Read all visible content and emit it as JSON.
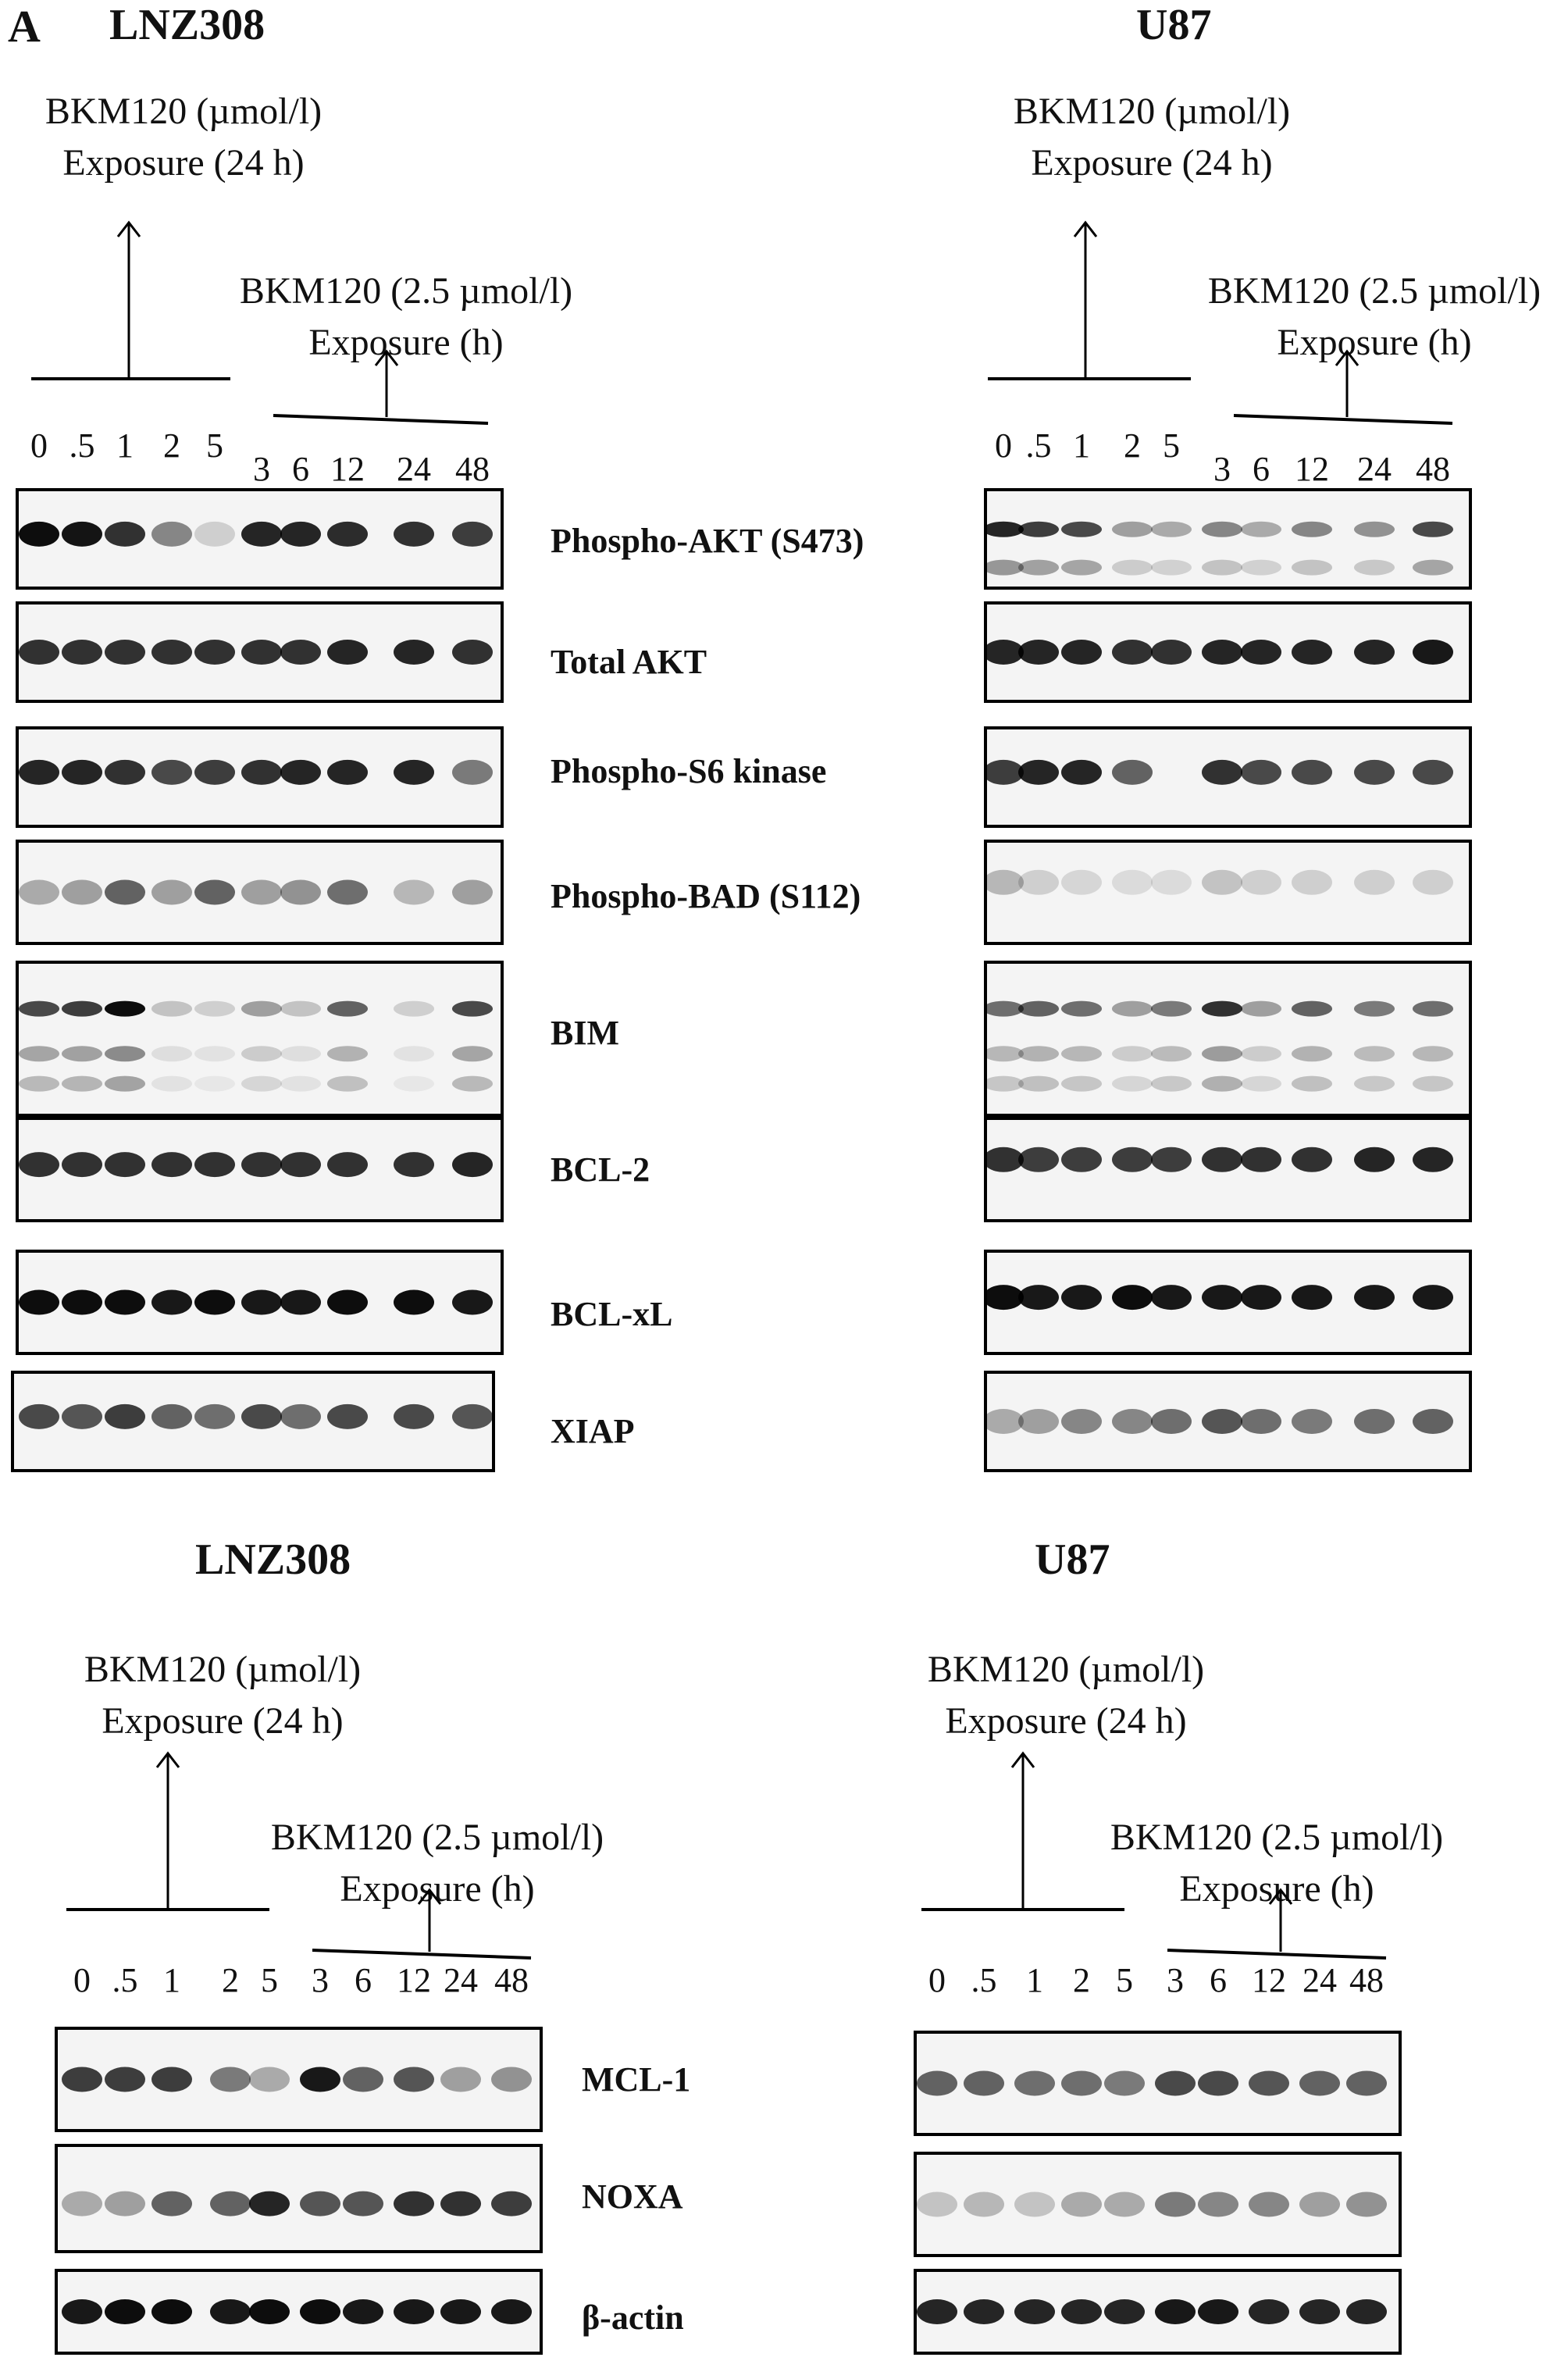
{
  "panel_letter": "A",
  "lane_labels_24h": [
    "0",
    ".5",
    "1",
    "2",
    "5"
  ],
  "lane_labels_time": [
    "3",
    "6",
    "12",
    "24",
    "48"
  ],
  "sections": [
    {
      "cell_line": "LNZ308",
      "dose_label": "BKM120 (µmol/l)",
      "dose_exposure": "Exposure (24 h)",
      "time_label": "BKM120 (2.5 µmol/l)",
      "time_exposure": "Exposure (h)",
      "blots": [
        {
          "label": "Phospho-AKT (S473)",
          "intensities": [
            0.95,
            0.92,
            0.8,
            0.45,
            0.15,
            0.85,
            0.85,
            0.82,
            0.8,
            0.75
          ]
        },
        {
          "label": "Total AKT",
          "intensities": [
            0.8,
            0.8,
            0.8,
            0.8,
            0.8,
            0.8,
            0.8,
            0.85,
            0.85,
            0.8
          ]
        },
        {
          "label": "Phospho-S6 kinase",
          "intensities": [
            0.85,
            0.85,
            0.8,
            0.7,
            0.75,
            0.8,
            0.85,
            0.85,
            0.85,
            0.5
          ]
        },
        {
          "label": "Phospho-BAD (S112)",
          "intensities": [
            0.3,
            0.35,
            0.6,
            0.35,
            0.6,
            0.35,
            0.4,
            0.55,
            0.25,
            0.35
          ]
        },
        {
          "label": "BIM",
          "intensities": [
            0.7,
            0.75,
            0.95,
            0.2,
            0.15,
            0.35,
            0.2,
            0.6,
            0.15,
            0.7
          ]
        },
        {
          "label": "BCL-2",
          "intensities": [
            0.8,
            0.8,
            0.8,
            0.8,
            0.8,
            0.8,
            0.8,
            0.8,
            0.8,
            0.85
          ]
        },
        {
          "label": "BCL-xL",
          "intensities": [
            0.95,
            0.95,
            0.95,
            0.9,
            0.95,
            0.9,
            0.9,
            0.95,
            0.95,
            0.9
          ]
        },
        {
          "label": "XIAP",
          "intensities": [
            0.7,
            0.65,
            0.75,
            0.6,
            0.55,
            0.7,
            0.55,
            0.7,
            0.7,
            0.65
          ]
        }
      ]
    },
    {
      "cell_line": "U87",
      "dose_label": "BKM120 (µmol/l)",
      "dose_exposure": "Exposure (24 h)",
      "time_label": "BKM120 (2.5 µmol/l)",
      "time_exposure": "Exposure (h)",
      "blots": [
        {
          "label": "Phospho-AKT (S473)",
          "intensities": [
            0.85,
            0.75,
            0.7,
            0.35,
            0.3,
            0.45,
            0.3,
            0.45,
            0.4,
            0.7
          ]
        },
        {
          "label": "Total AKT",
          "intensities": [
            0.85,
            0.85,
            0.85,
            0.8,
            0.8,
            0.85,
            0.85,
            0.85,
            0.85,
            0.9
          ]
        },
        {
          "label": "Phospho-S6 kinase",
          "intensities": [
            0.75,
            0.85,
            0.85,
            0.6,
            0.0,
            0.8,
            0.7,
            0.7,
            0.7,
            0.7
          ]
        },
        {
          "label": "Phospho-BAD (S112)",
          "intensities": [
            0.25,
            0.15,
            0.12,
            0.1,
            0.1,
            0.2,
            0.15,
            0.15,
            0.15,
            0.15
          ]
        },
        {
          "label": "BIM",
          "intensities": [
            0.55,
            0.6,
            0.55,
            0.35,
            0.5,
            0.8,
            0.35,
            0.6,
            0.5,
            0.55
          ]
        },
        {
          "label": "BCL-2",
          "intensities": [
            0.8,
            0.75,
            0.75,
            0.75,
            0.75,
            0.8,
            0.8,
            0.8,
            0.85,
            0.85
          ]
        },
        {
          "label": "BCL-xL",
          "intensities": [
            0.95,
            0.9,
            0.9,
            0.95,
            0.9,
            0.9,
            0.9,
            0.9,
            0.9,
            0.9
          ]
        },
        {
          "label": "XIAP",
          "intensities": [
            0.3,
            0.35,
            0.45,
            0.45,
            0.55,
            0.65,
            0.55,
            0.5,
            0.55,
            0.6
          ]
        }
      ]
    },
    {
      "cell_line": "LNZ308",
      "dose_label": "BKM120 (µmol/l)",
      "dose_exposure": "Exposure (24 h)",
      "time_label": "BKM120 (2.5 µmol/l)",
      "time_exposure": "Exposure (h)",
      "blots": [
        {
          "label": "MCL-1",
          "intensities": [
            0.75,
            0.75,
            0.75,
            0.5,
            0.3,
            0.9,
            0.6,
            0.65,
            0.35,
            0.4
          ]
        },
        {
          "label": "NOXA",
          "intensities": [
            0.3,
            0.35,
            0.6,
            0.6,
            0.85,
            0.65,
            0.65,
            0.8,
            0.8,
            0.75
          ]
        },
        {
          "label": "β-actin",
          "intensities": [
            0.9,
            0.95,
            0.95,
            0.9,
            0.95,
            0.95,
            0.9,
            0.9,
            0.9,
            0.9
          ]
        }
      ]
    },
    {
      "cell_line": "U87",
      "dose_label": "BKM120 (µmol/l)",
      "dose_exposure": "Exposure (24 h)",
      "time_label": "BKM120 (2.5 µmol/l)",
      "time_exposure": "Exposure (h)",
      "blots": [
        {
          "label": "MCL-1",
          "intensities": [
            0.6,
            0.6,
            0.55,
            0.55,
            0.5,
            0.7,
            0.7,
            0.65,
            0.6,
            0.6
          ]
        },
        {
          "label": "NOXA",
          "intensities": [
            0.2,
            0.25,
            0.2,
            0.3,
            0.3,
            0.5,
            0.45,
            0.45,
            0.35,
            0.4
          ]
        },
        {
          "label": "β-actin",
          "intensities": [
            0.85,
            0.85,
            0.85,
            0.85,
            0.85,
            0.9,
            0.9,
            0.85,
            0.85,
            0.85
          ]
        }
      ]
    }
  ]
}
